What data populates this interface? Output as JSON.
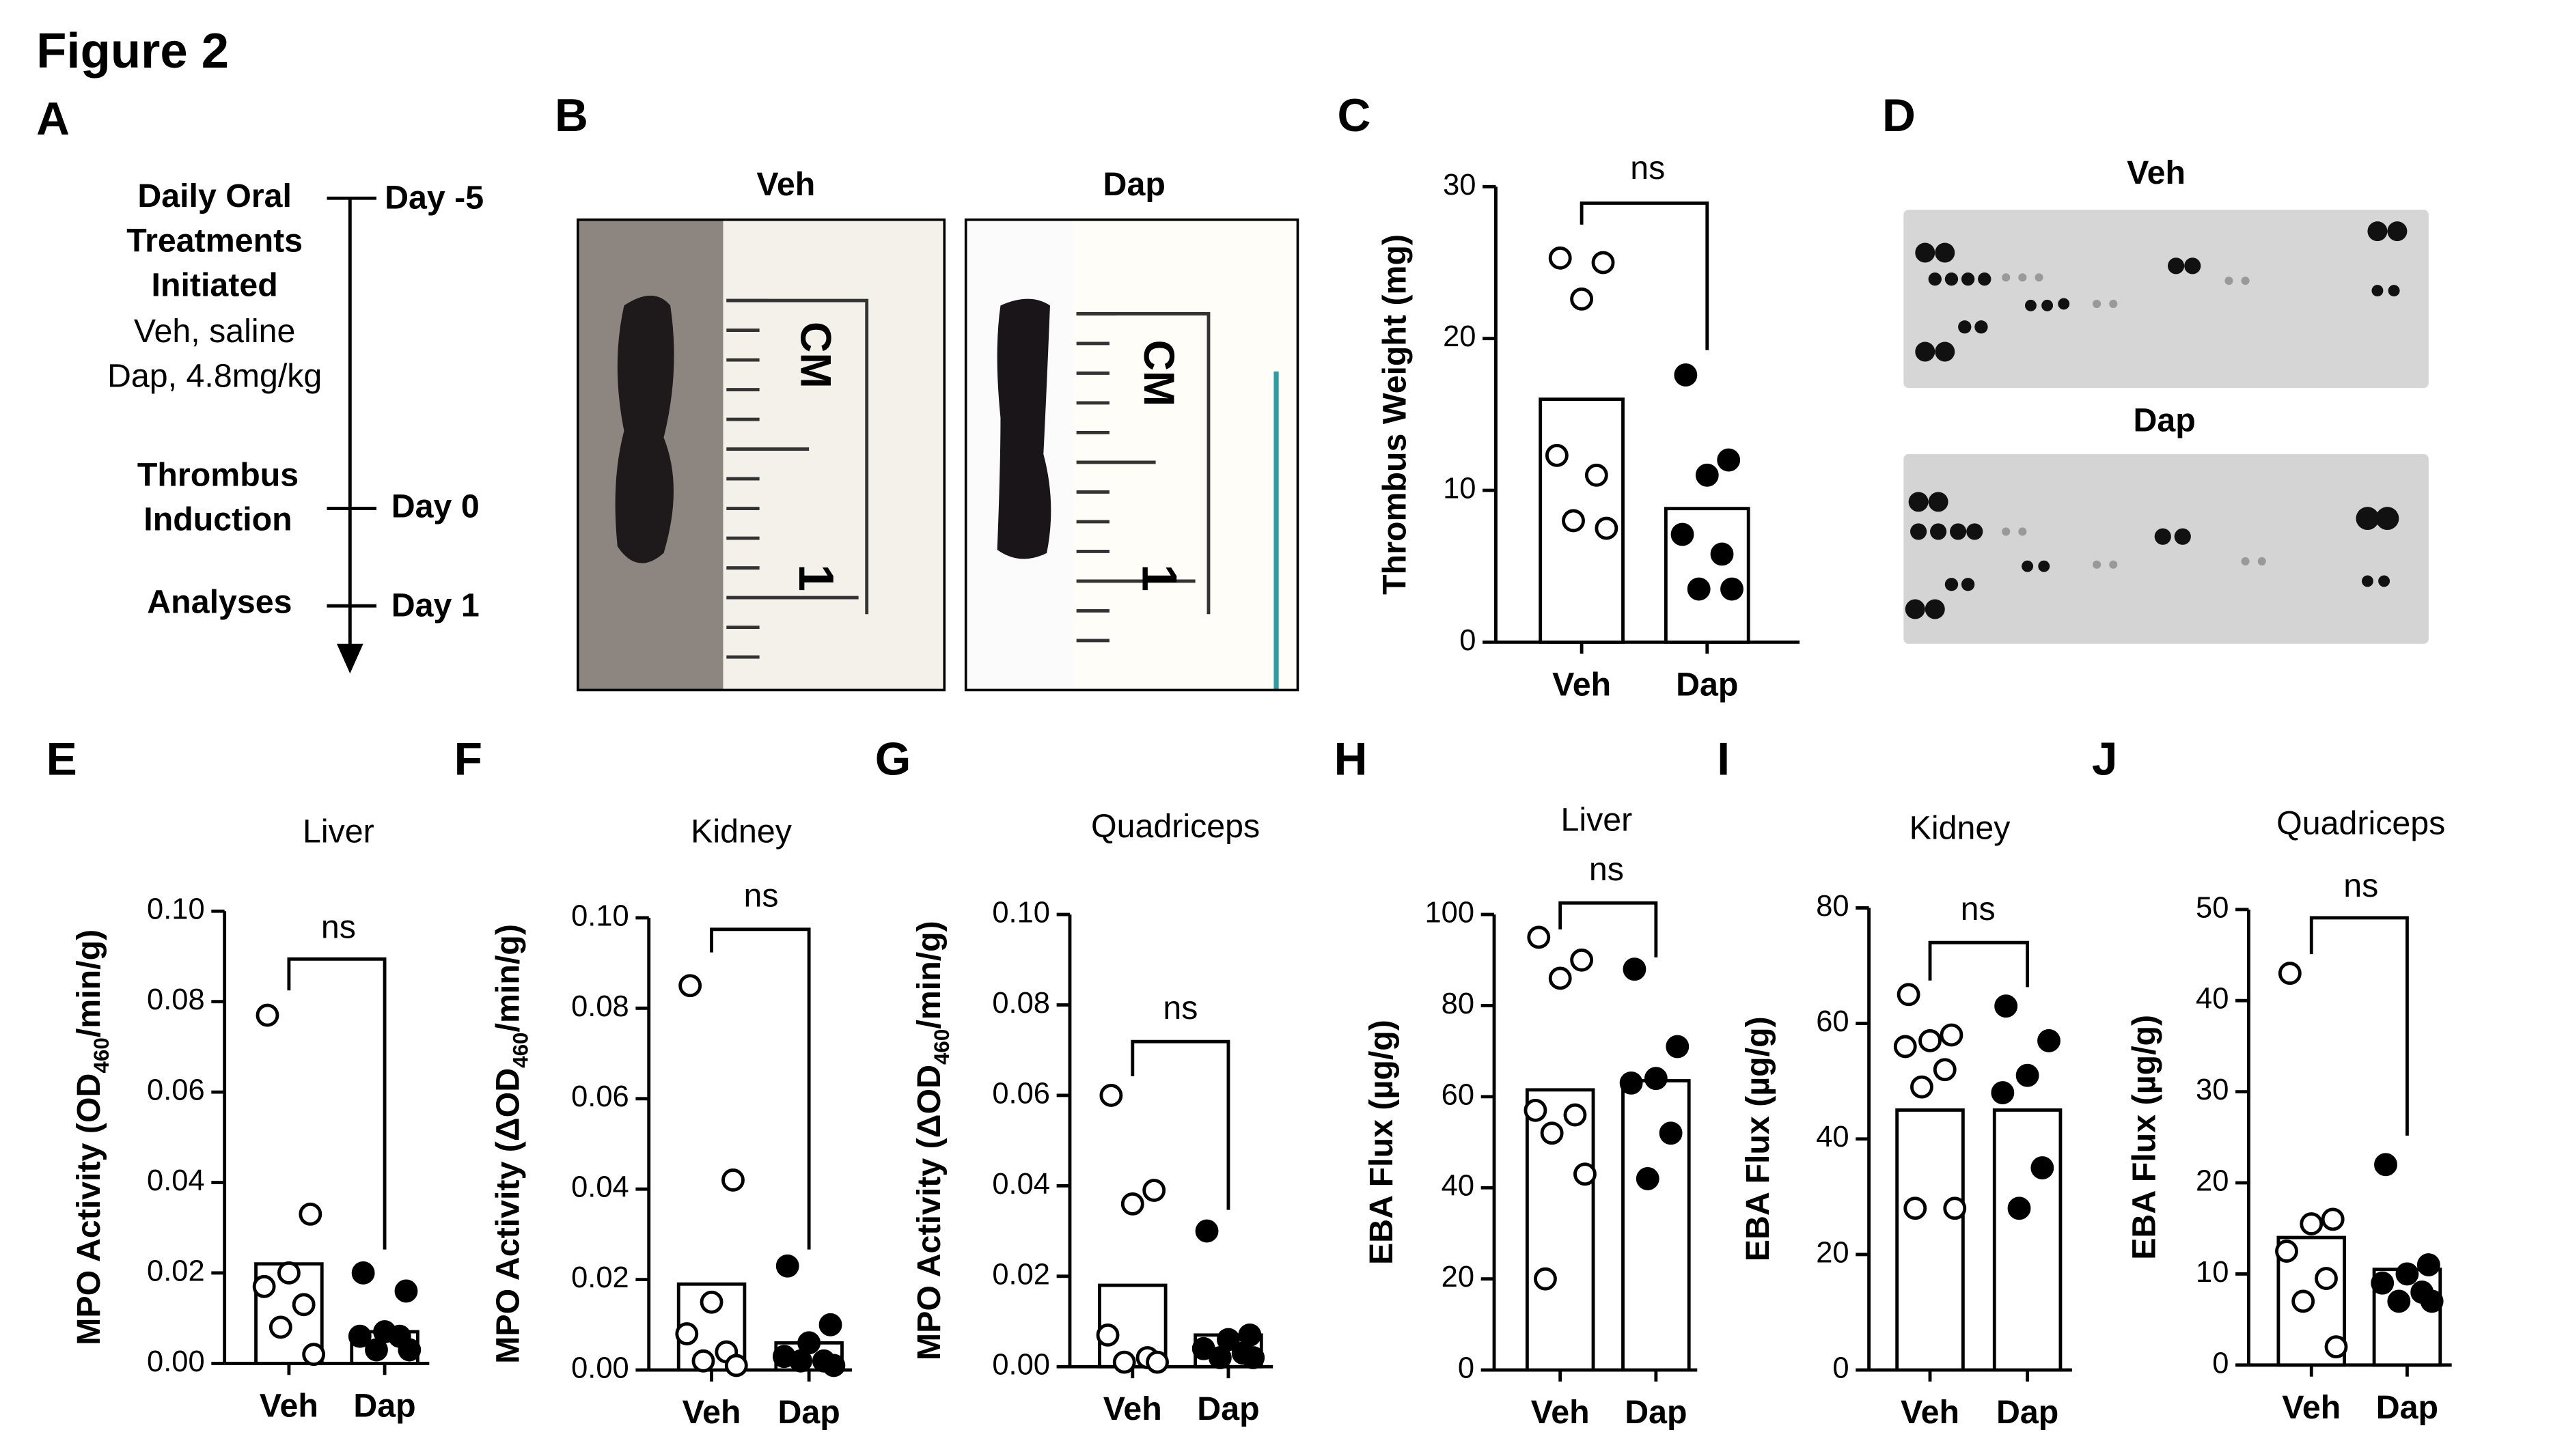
{
  "figure_title": "Figure 2",
  "timeline": {
    "panel": "A",
    "steps": [
      {
        "lines": [
          "Daily Oral",
          "Treatments",
          "Initiated"
        ],
        "notes": [
          "Veh, saline",
          "Dap, 4.8mg/kg"
        ],
        "day": "Day -5"
      },
      {
        "lines": [
          "Thrombus",
          "Induction"
        ],
        "day": "Day 0"
      },
      {
        "lines": [
          "Analyses"
        ],
        "day": "Day 1"
      }
    ]
  },
  "photos": {
    "panel": "B",
    "labels": [
      "Veh",
      "Dap"
    ],
    "ruler_unit": "CM",
    "ruler_mark": "1"
  },
  "blots": {
    "panel": "D",
    "labels": [
      "Veh",
      "Dap"
    ]
  },
  "chart_data": [
    {
      "type": "bar",
      "panel": "C",
      "ylabel": [
        "Thrombus Weight (mg)"
      ],
      "categories": [
        "Veh",
        "Dap"
      ],
      "values": [
        16,
        8.8
      ],
      "points": [
        [
          25.3,
          25.0,
          22.6,
          12.3,
          11.0,
          8.0,
          7.5
        ],
        [
          17.6,
          12.0,
          11.0,
          7.1,
          5.8,
          3.5,
          3.5
        ]
      ],
      "point_fills": [
        "#ffffff",
        "#000000"
      ],
      "ylim": [
        0,
        30
      ],
      "yticks": [
        0,
        10,
        20,
        30
      ],
      "annotation": "ns"
    },
    {
      "type": "bar",
      "panel": "E",
      "title": "Liver",
      "ylabel": [
        "MPO Activity (OD",
        "460",
        "/min/g)"
      ],
      "categories": [
        "Veh",
        "Dap"
      ],
      "values": [
        0.022,
        0.007
      ],
      "points": [
        [
          0.077,
          0.033,
          0.02,
          0.017,
          0.013,
          0.008,
          0.002
        ],
        [
          0.02,
          0.016,
          0.007,
          0.006,
          0.006,
          0.003,
          0.003
        ]
      ],
      "point_fills": [
        "#ffffff",
        "#000000"
      ],
      "ylim": [
        0,
        0.1
      ],
      "yticks": [
        {
          "value": 0,
          "label": "0.00"
        },
        {
          "value": 0.02,
          "label": "0.02"
        },
        {
          "value": 0.04,
          "label": "0.04"
        },
        {
          "value": 0.06,
          "label": "0.06"
        },
        {
          "value": 0.08,
          "label": "0.08"
        },
        {
          "value": 0.1,
          "label": "0.10"
        }
      ],
      "annotation": "ns"
    },
    {
      "type": "bar",
      "panel": "F",
      "title": "Kidney",
      "ylabel": [
        "MPO Activity (ΔOD",
        "460",
        "/min/g)"
      ],
      "categories": [
        "Veh",
        "Dap"
      ],
      "values": [
        0.019,
        0.006
      ],
      "points": [
        [
          0.085,
          0.042,
          0.015,
          0.008,
          0.004,
          0.002,
          0.001
        ],
        [
          0.023,
          0.01,
          0.006,
          0.003,
          0.002,
          0.002,
          0.001
        ]
      ],
      "point_fills": [
        "#ffffff",
        "#000000"
      ],
      "ylim": [
        0,
        0.1
      ],
      "yticks": [
        {
          "value": 0,
          "label": "0.00"
        },
        {
          "value": 0.02,
          "label": "0.02"
        },
        {
          "value": 0.04,
          "label": "0.04"
        },
        {
          "value": 0.06,
          "label": "0.06"
        },
        {
          "value": 0.08,
          "label": "0.08"
        },
        {
          "value": 0.1,
          "label": "0.10"
        }
      ],
      "annotation": "ns"
    },
    {
      "type": "bar",
      "panel": "G",
      "title": "Quadriceps",
      "ylabel": [
        "MPO Activity (ΔOD",
        "460",
        "/min/g)"
      ],
      "categories": [
        "Veh",
        "Dap"
      ],
      "values": [
        0.018,
        0.007
      ],
      "points": [
        [
          0.06,
          0.039,
          0.036,
          0.007,
          0.002,
          0.001,
          0.001
        ],
        [
          0.03,
          0.007,
          0.006,
          0.004,
          0.003,
          0.002,
          0.002
        ]
      ],
      "point_fills": [
        "#ffffff",
        "#000000"
      ],
      "ylim": [
        0,
        0.1
      ],
      "yticks": [
        {
          "value": 0,
          "label": "0.00"
        },
        {
          "value": 0.02,
          "label": "0.02"
        },
        {
          "value": 0.04,
          "label": "0.04"
        },
        {
          "value": 0.06,
          "label": "0.06"
        },
        {
          "value": 0.08,
          "label": "0.08"
        },
        {
          "value": 0.1,
          "label": "0.10"
        }
      ],
      "annotation": "ns"
    },
    {
      "type": "bar",
      "panel": "H",
      "title": "Liver",
      "ylabel": [
        "EBA Flux (µg/g)"
      ],
      "categories": [
        "Veh",
        "Dap"
      ],
      "values": [
        61.5,
        63.5
      ],
      "points": [
        [
          95,
          90,
          86,
          57,
          56,
          52,
          43,
          20
        ],
        [
          88,
          71,
          64,
          63,
          52,
          42
        ]
      ],
      "point_fills": [
        "#ffffff",
        "#000000"
      ],
      "ylim": [
        0,
        100
      ],
      "yticks": [
        0,
        20,
        40,
        60,
        80,
        100
      ],
      "annotation": "ns"
    },
    {
      "type": "bar",
      "panel": "I",
      "title": "Kidney",
      "ylabel": [
        "EBA Flux (µg/g)"
      ],
      "categories": [
        "Veh",
        "Dap"
      ],
      "values": [
        45,
        45
      ],
      "points": [
        [
          65,
          58,
          57,
          56,
          52,
          49,
          28,
          28
        ],
        [
          63,
          57,
          51,
          48,
          35,
          28
        ]
      ],
      "point_fills": [
        "#ffffff",
        "#000000"
      ],
      "ylim": [
        0,
        80
      ],
      "yticks": [
        0,
        20,
        40,
        60,
        80
      ],
      "annotation": "ns"
    },
    {
      "type": "bar",
      "panel": "J",
      "title": "Quadriceps",
      "ylabel": [
        "EBA Flux (µg/g)"
      ],
      "categories": [
        "Veh",
        "Dap"
      ],
      "values": [
        14,
        10.5
      ],
      "points": [
        [
          43,
          16,
          15.5,
          12.5,
          9.5,
          7,
          2
        ],
        [
          22,
          11,
          10,
          9,
          8,
          7,
          7
        ]
      ],
      "point_fills": [
        "#ffffff",
        "#000000"
      ],
      "ylim": [
        0,
        50
      ],
      "yticks": [
        0,
        10,
        20,
        30,
        40,
        50
      ],
      "annotation": "ns"
    }
  ]
}
